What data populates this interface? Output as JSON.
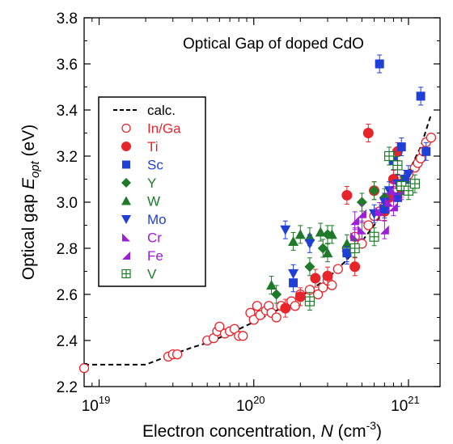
{
  "chart_data": {
    "type": "scatter",
    "title": "Optical Gap of doped CdO",
    "xlabel": {
      "pre": "Electron concentration, ",
      "var": "N",
      "unit_open": " (cm",
      "sup": "-3",
      "unit_close": ")"
    },
    "ylabel": {
      "pre": "Optical gap ",
      "var": "E",
      "sub": "opt",
      "unit": "  (eV)"
    },
    "x_scale": "log",
    "xlim": [
      8e+18,
      1.6e+21
    ],
    "ylim": [
      2.2,
      3.8
    ],
    "x_ticks": [
      {
        "value": 1e+19,
        "base": "10",
        "exp": "19"
      },
      {
        "value": 1e+20,
        "base": "10",
        "exp": "20"
      },
      {
        "value": 1e+21,
        "base": "10",
        "exp": "21"
      }
    ],
    "y_ticks": [
      "2.2",
      "2.4",
      "2.6",
      "2.8",
      "3.0",
      "3.2",
      "3.4",
      "3.6",
      "3.8"
    ],
    "legend_position": "left",
    "calc_curve": {
      "name": "calc.",
      "x": [
        8e+18,
        1.2e+19,
        1.7e+19,
        2e+19,
        2.5e+19,
        3e+19,
        4e+19,
        5e+19,
        7e+19,
        1e+20,
        1.5e+20,
        2e+20,
        3e+20,
        4e+20,
        5e+20,
        6e+20,
        7e+20,
        8e+20,
        1e+21,
        1.2e+21,
        1.4e+21
      ],
      "y": [
        2.295,
        2.295,
        2.295,
        2.295,
        2.32,
        2.34,
        2.37,
        2.39,
        2.43,
        2.48,
        2.54,
        2.59,
        2.67,
        2.75,
        2.83,
        2.9,
        2.97,
        3.03,
        3.13,
        3.24,
        3.38
      ]
    },
    "series": [
      {
        "name": "In/Ga",
        "color": "#e8242b",
        "marker": "circle-open",
        "points": [
          [
            8e+18,
            2.28
          ],
          [
            2.8e+19,
            2.33
          ],
          [
            3e+19,
            2.34
          ],
          [
            3.2e+19,
            2.34
          ],
          [
            5e+19,
            2.4
          ],
          [
            5.5e+19,
            2.41
          ],
          [
            5.8e+19,
            2.44
          ],
          [
            6e+19,
            2.46
          ],
          [
            6.5e+19,
            2.43
          ],
          [
            7e+19,
            2.44
          ],
          [
            7.5e+19,
            2.45
          ],
          [
            8e+19,
            2.42
          ],
          [
            8.5e+19,
            2.42
          ],
          [
            9.5e+19,
            2.52
          ],
          [
            1e+20,
            2.49
          ],
          [
            1.05e+20,
            2.55
          ],
          [
            1.1e+20,
            2.51
          ],
          [
            1.2e+20,
            2.53
          ],
          [
            1.25e+20,
            2.55
          ],
          [
            1.3e+20,
            2.52
          ],
          [
            1.4e+20,
            2.5
          ],
          [
            1.5e+20,
            2.55
          ],
          [
            1.6e+20,
            2.54
          ],
          [
            1.75e+20,
            2.57
          ],
          [
            1.85e+20,
            2.55
          ],
          [
            2e+20,
            2.6
          ],
          [
            2.3e+20,
            2.62
          ],
          [
            2.6e+20,
            2.6
          ],
          [
            2.8e+20,
            2.63
          ],
          [
            3e+20,
            2.66
          ],
          [
            3.2e+20,
            2.64
          ],
          [
            3.5e+20,
            2.71
          ],
          [
            4e+20,
            2.8
          ],
          [
            4.5e+20,
            2.85
          ],
          [
            5e+20,
            2.82
          ],
          [
            5.5e+20,
            2.9
          ],
          [
            6e+20,
            2.94
          ],
          [
            6.5e+20,
            2.96
          ],
          [
            7e+20,
            2.98
          ],
          [
            7.5e+20,
            3.02
          ],
          [
            8e+20,
            3.05
          ],
          [
            8.5e+20,
            3.1
          ],
          [
            9e+20,
            3.08
          ],
          [
            1e+21,
            3.12
          ],
          [
            1.1e+21,
            3.15
          ],
          [
            1.15e+21,
            3.17
          ],
          [
            1.2e+21,
            3.19
          ],
          [
            1.25e+21,
            3.22
          ],
          [
            1.3e+21,
            3.26
          ],
          [
            1.4e+21,
            3.28
          ]
        ]
      },
      {
        "name": "Ti",
        "color": "#e8242b",
        "marker": "circle",
        "points": [
          [
            1.6e+20,
            2.54
          ],
          [
            2e+20,
            2.59
          ],
          [
            2.5e+20,
            2.67
          ],
          [
            3e+20,
            2.68
          ],
          [
            4e+20,
            3.03
          ],
          [
            4.5e+20,
            2.72
          ],
          [
            5.5e+20,
            3.3
          ],
          [
            6e+20,
            3.05
          ],
          [
            7e+20,
            2.96
          ],
          [
            7.5e+20,
            3.02
          ],
          [
            8e+20,
            3.1
          ],
          [
            8.5e+20,
            3.22
          ],
          [
            9e+20,
            3.06
          ]
        ]
      },
      {
        "name": "Sc",
        "color": "#1f3fd6",
        "marker": "square",
        "points": [
          [
            6.5e+20,
            3.6
          ],
          [
            1.2e+21,
            3.46
          ],
          [
            9e+20,
            3.24
          ],
          [
            1.3e+21,
            3.22
          ],
          [
            8e+20,
            3.18
          ],
          [
            9.5e+20,
            3.1
          ],
          [
            8.5e+20,
            3.02
          ],
          [
            7e+20,
            2.97
          ],
          [
            4e+20,
            2.78
          ],
          [
            1.8e+20,
            2.65
          ]
        ]
      },
      {
        "name": "Y",
        "color": "#1f7a2a",
        "marker": "diamond",
        "points": [
          [
            1.4e+20,
            2.6
          ],
          [
            2.3e+20,
            2.72
          ],
          [
            2.8e+20,
            2.8
          ],
          [
            3e+20,
            2.86
          ],
          [
            5e+20,
            3.0
          ],
          [
            6e+20,
            3.05
          ],
          [
            7e+20,
            3.02
          ]
        ]
      },
      {
        "name": "W",
        "color": "#1f7a2a",
        "marker": "triangle-up",
        "points": [
          [
            1.3e+20,
            2.64
          ],
          [
            1.8e+20,
            2.83
          ],
          [
            2e+20,
            2.86
          ],
          [
            2.3e+20,
            2.85
          ],
          [
            2.7e+20,
            2.87
          ],
          [
            3.2e+20,
            2.86
          ],
          [
            3e+20,
            2.78
          ],
          [
            4e+20,
            2.82
          ]
        ]
      },
      {
        "name": "Mo",
        "color": "#1f3fd6",
        "marker": "triangle-down",
        "points": [
          [
            1.6e+20,
            2.88
          ],
          [
            1.8e+20,
            2.69
          ],
          [
            2.3e+20,
            2.82
          ],
          [
            4e+20,
            2.77
          ],
          [
            6e+20,
            2.95
          ],
          [
            7e+20,
            3.0
          ],
          [
            7.5e+20,
            3.05
          ],
          [
            8.5e+20,
            3.08
          ],
          [
            1e+21,
            3.12
          ]
        ]
      },
      {
        "name": "Cr",
        "color": "#9b1fd6",
        "marker": "triangle-right",
        "points": [
          [
            4.5e+20,
            2.85
          ],
          [
            5e+20,
            2.88
          ],
          [
            6.5e+20,
            2.96
          ],
          [
            7.5e+20,
            3.0
          ],
          [
            8e+20,
            3.05
          ]
        ]
      },
      {
        "name": "Fe",
        "color": "#9b1fd6",
        "marker": "triangle-left",
        "points": [
          [
            4.5e+20,
            2.92
          ],
          [
            5e+20,
            2.95
          ],
          [
            7e+20,
            2.88
          ],
          [
            8e+20,
            2.98
          ],
          [
            9e+20,
            3.05
          ]
        ]
      },
      {
        "name": "V",
        "color": "#1f7a2a",
        "marker": "square-plus",
        "points": [
          [
            2.3e+20,
            2.57
          ],
          [
            4.5e+20,
            2.8
          ],
          [
            6e+20,
            2.85
          ],
          [
            7.5e+20,
            3.2
          ],
          [
            8.5e+20,
            3.16
          ],
          [
            9e+20,
            3.07
          ],
          [
            1e+21,
            3.05
          ],
          [
            1.1e+21,
            3.08
          ]
        ]
      }
    ],
    "legend": [
      {
        "label": "calc.",
        "color": "#000000",
        "marker": "dashed-line"
      },
      {
        "label": "In/Ga",
        "color": "#e8242b",
        "marker": "circle-open"
      },
      {
        "label": "Ti",
        "color": "#e8242b",
        "marker": "circle"
      },
      {
        "label": "Sc",
        "color": "#1f3fd6",
        "marker": "square"
      },
      {
        "label": "Y",
        "color": "#1f7a2a",
        "marker": "diamond"
      },
      {
        "label": "W",
        "color": "#1f7a2a",
        "marker": "triangle-up"
      },
      {
        "label": "Mo",
        "color": "#1f3fd6",
        "marker": "triangle-down"
      },
      {
        "label": "Cr",
        "color": "#9b1fd6",
        "marker": "triangle-right"
      },
      {
        "label": "Fe",
        "color": "#9b1fd6",
        "marker": "triangle-left"
      },
      {
        "label": "V",
        "color": "#1f7a2a",
        "marker": "square-plus"
      }
    ]
  }
}
